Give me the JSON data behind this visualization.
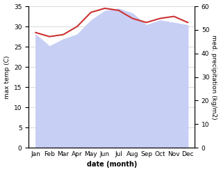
{
  "months": [
    "Jan",
    "Feb",
    "Mar",
    "Apr",
    "May",
    "Jun",
    "Jul",
    "Aug",
    "Sep",
    "Oct",
    "Nov",
    "Dec"
  ],
  "temp_max": [
    28.5,
    27.5,
    28.0,
    30.0,
    33.5,
    34.5,
    34.0,
    32.0,
    31.0,
    32.0,
    32.5,
    31.0
  ],
  "precip_kg": [
    48,
    43,
    46,
    48,
    54,
    58,
    59,
    57,
    52,
    54,
    53,
    52
  ],
  "temp_ylim": [
    0,
    35
  ],
  "precip_ylim": [
    0,
    60
  ],
  "temp_color": "#cc3333",
  "precip_fill_color": "#c8cff5",
  "xlabel": "date (month)",
  "ylabel_left": "max temp (C)",
  "ylabel_right": "med. precipitation (kg/m2)",
  "temp_yticks": [
    0,
    5,
    10,
    15,
    20,
    25,
    30,
    35
  ],
  "precip_yticks": [
    0,
    10,
    20,
    30,
    40,
    50,
    60
  ],
  "bg_color": "#ffffff"
}
